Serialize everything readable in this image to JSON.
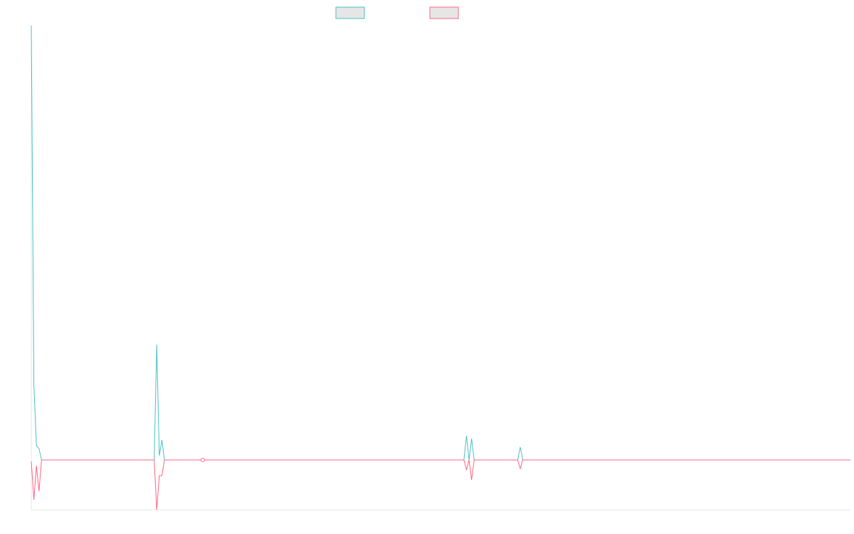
{
  "chart_data": {
    "type": "line",
    "x": [
      0,
      1,
      2,
      3,
      4,
      48,
      49,
      50,
      51,
      52,
      67,
      169,
      170,
      171,
      172,
      173,
      190,
      191,
      192,
      320
    ],
    "xlim": [
      0,
      320
    ],
    "ylim": [
      -70,
      610
    ],
    "legend": "top",
    "series": [
      {
        "color": "#4bc0c0",
        "values": [
          610,
          106,
          20,
          16,
          0,
          0,
          162,
          6,
          28,
          0,
          0,
          0,
          34,
          0,
          30,
          0,
          0,
          18,
          0,
          0
        ]
      },
      {
        "color": "#ff6384",
        "values": [
          -2,
          -56,
          -8,
          -44,
          0,
          0,
          -70,
          -22,
          -22,
          0,
          0,
          0,
          -14,
          0,
          -28,
          0,
          0,
          -12,
          0,
          0
        ]
      }
    ]
  }
}
